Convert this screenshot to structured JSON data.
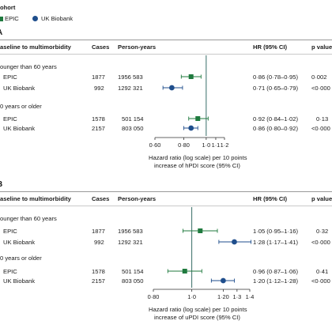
{
  "legend": {
    "title": "ohort",
    "items": [
      {
        "label": "EPIC",
        "color": "#1f7a3e",
        "shape": "square"
      },
      {
        "label": "UK Biobank",
        "color": "#1f4e8c",
        "shape": "circle"
      }
    ]
  },
  "columns": {
    "baseline": "aseline to multimorbidity",
    "cases": "Cases",
    "person_years": "Person-years",
    "hr": "HR (95% CI)",
    "p": "p value"
  },
  "chart_data": [
    {
      "type": "forest",
      "panel": "A",
      "xlabel_line1": "Hazard ratio (log scale) per 10 points",
      "xlabel_line2": "increase of hPDI score (95% CI)",
      "xlim": [
        0.6,
        1.2
      ],
      "ticks": [
        {
          "v": 0.6,
          "label": "0·60"
        },
        {
          "v": 0.8,
          "label": "0·80"
        },
        {
          "v": 1.0,
          "label": "1·0"
        },
        {
          "v": 1.1,
          "label": "1·1"
        },
        {
          "v": 1.2,
          "label": "1·2"
        }
      ],
      "reference": 1.0,
      "groups": [
        {
          "label": "ounger than 60 years",
          "rows": [
            {
              "cohort": "EPIC",
              "cases": "1877",
              "person_years": "1956 583",
              "hr": 0.86,
              "lo": 0.78,
              "hi": 0.95,
              "hr_text": "0·86 (0·78–0·95)",
              "p": "0·002"
            },
            {
              "cohort": "UK Biobank",
              "cases": "992",
              "person_years": "1292 321",
              "hr": 0.71,
              "lo": 0.65,
              "hi": 0.79,
              "hr_text": "0·71 (0·65–0·79)",
              "p": "<0·000"
            }
          ]
        },
        {
          "label": "0 years or older",
          "rows": [
            {
              "cohort": "EPIC",
              "cases": "1578",
              "person_years": "501 154",
              "hr": 0.92,
              "lo": 0.84,
              "hi": 1.02,
              "hr_text": "0·92 (0·84–1·02)",
              "p": "0·13"
            },
            {
              "cohort": "UK Biobank",
              "cases": "2157",
              "person_years": "803 050",
              "hr": 0.86,
              "lo": 0.8,
              "hi": 0.92,
              "hr_text": "0·86 (0·80–0·92)",
              "p": "<0·000"
            }
          ]
        }
      ]
    },
    {
      "type": "forest",
      "panel": "B",
      "xlabel_line1": "Hazard ratio (log scale) per 10 points",
      "xlabel_line2": "increase of uPDI score (95% CI)",
      "xlim": [
        0.8,
        1.4
      ],
      "ticks": [
        {
          "v": 0.8,
          "label": "0·80"
        },
        {
          "v": 1.0,
          "label": "1·0"
        },
        {
          "v": 1.2,
          "label": "1·20"
        },
        {
          "v": 1.3,
          "label": "1·3"
        },
        {
          "v": 1.4,
          "label": "1·4"
        }
      ],
      "reference": 1.0,
      "groups": [
        {
          "label": "ounger than 60 years",
          "rows": [
            {
              "cohort": "EPIC",
              "cases": "1877",
              "person_years": "1956 583",
              "hr": 1.05,
              "lo": 0.95,
              "hi": 1.16,
              "hr_text": "1·05 (0·95–1·16)",
              "p": "0·32"
            },
            {
              "cohort": "UK Biobank",
              "cases": "992",
              "person_years": "1292 321",
              "hr": 1.28,
              "lo": 1.17,
              "hi": 1.41,
              "hr_text": "1·28 (1·17–1·41)",
              "p": "<0·000"
            }
          ]
        },
        {
          "label": "0 years or older",
          "rows": [
            {
              "cohort": "EPIC",
              "cases": "1578",
              "person_years": "501 154",
              "hr": 0.96,
              "lo": 0.87,
              "hi": 1.06,
              "hr_text": "0·96 (0·87–1·06)",
              "p": "0·41"
            },
            {
              "cohort": "UK Biobank",
              "cases": "2157",
              "person_years": "803 050",
              "hr": 1.2,
              "lo": 1.12,
              "hi": 1.28,
              "hr_text": "1·20 (1·12–1·28)",
              "p": "<0·000"
            }
          ]
        }
      ]
    }
  ]
}
